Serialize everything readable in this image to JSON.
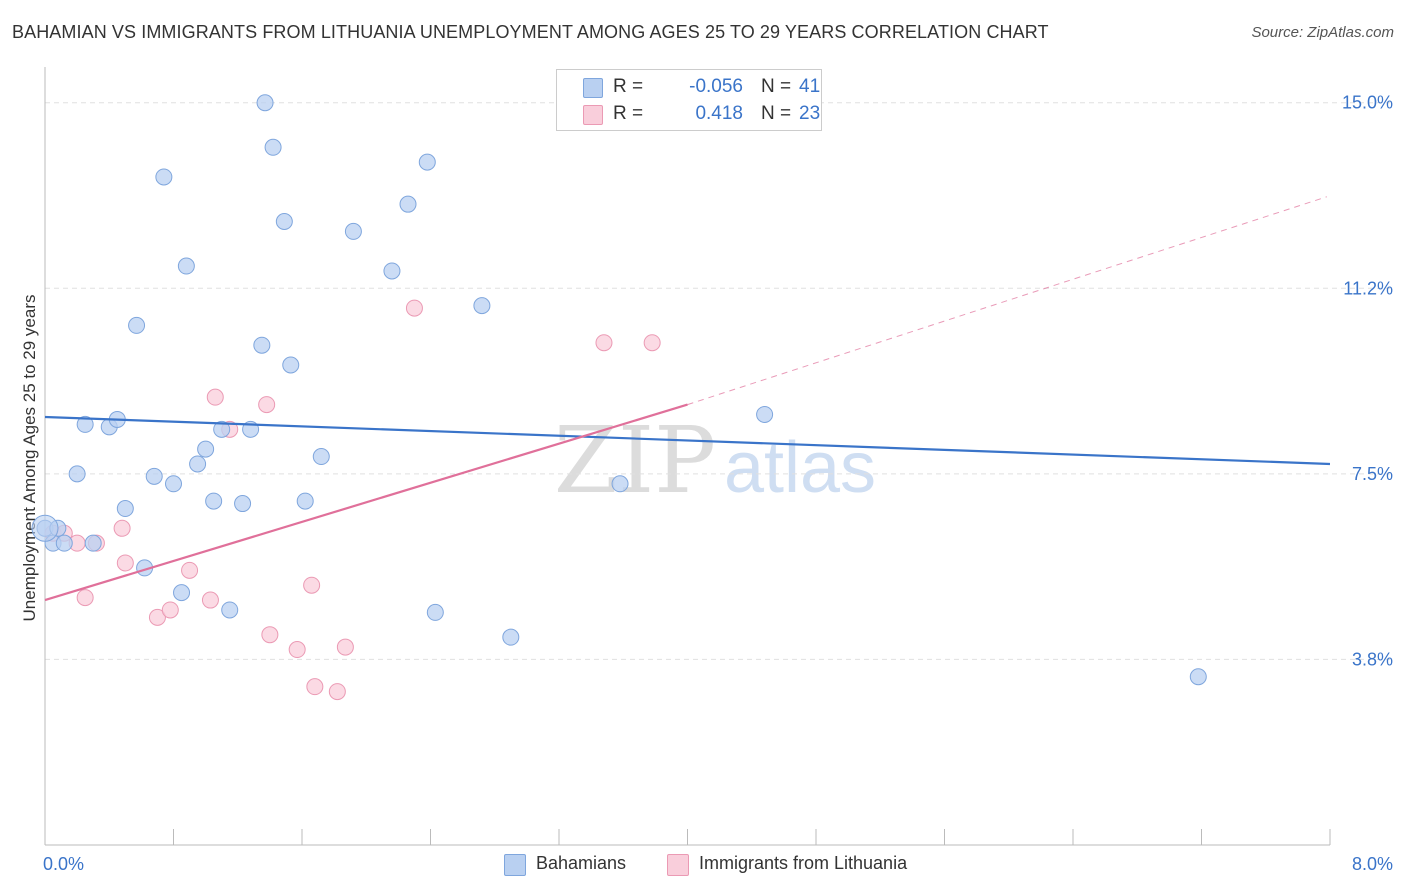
{
  "title": "BAHAMIAN VS IMMIGRANTS FROM LITHUANIA UNEMPLOYMENT AMONG AGES 25 TO 29 YEARS CORRELATION CHART",
  "source": "Source: ZipAtlas.com",
  "watermark": {
    "zip": "ZIP",
    "atlas": "atlas"
  },
  "legend": {
    "series": [
      {
        "r_label": "R =",
        "r_value": "-0.056",
        "n_label": "N =",
        "n_value": "41"
      },
      {
        "r_label": "R =",
        "r_value": "0.418",
        "n_label": "N =",
        "n_value": "23"
      }
    ]
  },
  "bottom_legend": {
    "bahamians": "Bahamians",
    "lithuania": "Immigrants from Lithuania"
  },
  "colors": {
    "blue_fill": "#b9d0f1",
    "blue_stroke": "#7fa6dd",
    "blue_line": "#3a74c9",
    "pink_fill": "#f9cedb",
    "pink_stroke": "#eb9ab4",
    "pink_line": "#e0709a",
    "tick_label": "#3a74c9",
    "grid": "#e0e0e0"
  },
  "chart_data": {
    "type": "scatter",
    "title": "BAHAMIAN VS IMMIGRANTS FROM LITHUANIA UNEMPLOYMENT AMONG AGES 25 TO 29 YEARS CORRELATION CHART",
    "xlabel": "",
    "ylabel": "Unemployment Among Ages 25 to 29 years",
    "xlim": [
      0,
      8
    ],
    "ylim": [
      0,
      15.5
    ],
    "x_tick_labels": [
      {
        "value": 0,
        "label": "0.0%"
      },
      {
        "value": 8,
        "label": "8.0%"
      }
    ],
    "x_minor_ticks": [
      0.8,
      1.6,
      2.4,
      3.2,
      4.0,
      4.8,
      5.6,
      6.4,
      7.2
    ],
    "y_ticks": [
      {
        "value": 3.75,
        "label": "3.8%"
      },
      {
        "value": 7.5,
        "label": "7.5%"
      },
      {
        "value": 11.25,
        "label": "11.2%"
      },
      {
        "value": 15.0,
        "label": "15.0%"
      }
    ],
    "grid": true,
    "series": [
      {
        "name": "Bahamians",
        "r": -0.056,
        "n": 41,
        "trend": {
          "x0": 0,
          "y0": 8.65,
          "x1": 8,
          "y1": 7.7
        },
        "points": [
          [
            0.0,
            6.4
          ],
          [
            0.08,
            6.4
          ],
          [
            0.05,
            6.1
          ],
          [
            0.12,
            6.1
          ],
          [
            0.3,
            6.1
          ],
          [
            0.25,
            8.5
          ],
          [
            0.4,
            8.45
          ],
          [
            0.2,
            7.5
          ],
          [
            0.45,
            8.6
          ],
          [
            0.5,
            6.8
          ],
          [
            0.57,
            10.5
          ],
          [
            0.62,
            5.6
          ],
          [
            0.68,
            7.45
          ],
          [
            0.74,
            13.5
          ],
          [
            0.8,
            7.3
          ],
          [
            0.85,
            5.1
          ],
          [
            0.88,
            11.7
          ],
          [
            0.95,
            7.7
          ],
          [
            1.0,
            8.0
          ],
          [
            1.05,
            6.95
          ],
          [
            1.1,
            8.4
          ],
          [
            1.15,
            4.75
          ],
          [
            1.23,
            6.9
          ],
          [
            1.28,
            8.4
          ],
          [
            1.35,
            10.1
          ],
          [
            1.37,
            15.0
          ],
          [
            1.42,
            14.1
          ],
          [
            1.49,
            12.6
          ],
          [
            1.53,
            9.7
          ],
          [
            1.62,
            6.95
          ],
          [
            1.72,
            7.85
          ],
          [
            1.92,
            12.4
          ],
          [
            2.16,
            11.6
          ],
          [
            2.26,
            12.95
          ],
          [
            2.38,
            13.8
          ],
          [
            2.43,
            4.7
          ],
          [
            2.72,
            10.9
          ],
          [
            2.9,
            4.2
          ],
          [
            3.58,
            7.3
          ],
          [
            4.48,
            8.7
          ],
          [
            7.18,
            3.4
          ]
        ]
      },
      {
        "name": "Immigrants from Lithuania",
        "r": 0.418,
        "n": 23,
        "trend": {
          "x0": 0,
          "y0": 4.95,
          "x1": 4.0,
          "y1": 8.9
        },
        "trend_extrapolated": {
          "x0": 4.0,
          "y0": 8.9,
          "x1": 7.98,
          "y1": 13.1
        },
        "points": [
          [
            0.05,
            6.3
          ],
          [
            0.12,
            6.3
          ],
          [
            0.2,
            6.1
          ],
          [
            0.25,
            5.0
          ],
          [
            0.32,
            6.1
          ],
          [
            0.48,
            6.4
          ],
          [
            0.5,
            5.7
          ],
          [
            0.7,
            4.6
          ],
          [
            0.78,
            4.75
          ],
          [
            0.9,
            5.55
          ],
          [
            1.03,
            4.95
          ],
          [
            1.06,
            9.05
          ],
          [
            1.15,
            8.4
          ],
          [
            1.38,
            8.9
          ],
          [
            1.4,
            4.25
          ],
          [
            1.57,
            3.95
          ],
          [
            1.66,
            5.25
          ],
          [
            1.68,
            3.2
          ],
          [
            1.82,
            3.1
          ],
          [
            1.87,
            4.0
          ],
          [
            2.3,
            10.85
          ],
          [
            3.48,
            10.15
          ],
          [
            3.78,
            10.15
          ]
        ]
      }
    ]
  }
}
